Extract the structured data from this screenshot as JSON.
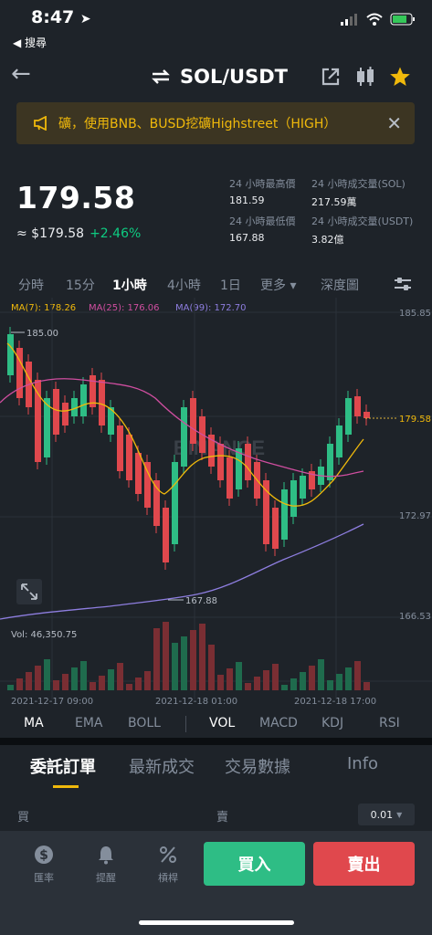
{
  "status_bar": {
    "time": "8:47",
    "back_label": "◀ 搜尋"
  },
  "header": {
    "pair": "SOL/USDT"
  },
  "banner": {
    "text": "礦，使用BNB、BUSD挖礦Highstreet（HIGH）"
  },
  "price": {
    "last": "179.58",
    "fiat": "≈ $179.58",
    "change": "+2.46%"
  },
  "stats": {
    "high_label": "24 小時最高價",
    "high_value": "181.59",
    "vol_sol_label": "24 小時成交量(SOL)",
    "vol_sol_value": "217.59萬",
    "low_label": "24 小時最低價",
    "low_value": "167.88",
    "vol_usdt_label": "24 小時成交量(USDT)",
    "vol_usdt_value": "3.82億"
  },
  "intervals": {
    "items": [
      "分時",
      "15分",
      "1小時",
      "4小時",
      "1日",
      "更多 ▾",
      "深度圖"
    ],
    "active": "1小時"
  },
  "ma_legend": {
    "ma7": "MA(7): 178.26",
    "ma25": "MA(25): 176.06",
    "ma99": "MA(99): 172.70"
  },
  "chart": {
    "price_axis": [
      "185.85",
      "179.58",
      "172.97",
      "166.53"
    ],
    "current_price_tag": "179.58",
    "high_marker": "185.00",
    "low_marker": "167.88",
    "volume_label": "Vol: 46,350.75",
    "time_axis": [
      "2021-12-17 09:00",
      "2021-12-18 01:00",
      "2021-12-18 17:00"
    ],
    "watermark": "BINANCE",
    "colors": {
      "up": "#2ebd85",
      "down": "#e0484d",
      "ma7": "#f0b90b",
      "ma25": "#d04ea0",
      "ma99": "#8e7ee0"
    }
  },
  "indicators": {
    "main": [
      "MA",
      "EMA",
      "BOLL"
    ],
    "sub": [
      "VOL",
      "MACD",
      "KDJ",
      "RSI"
    ]
  },
  "order_tabs": [
    "委託訂單",
    "最新成交",
    "交易數據",
    "Info"
  ],
  "orderbook": {
    "buy_label": "買",
    "sell_label": "賣",
    "precision": "0.01"
  },
  "bottom_nav": {
    "rates": "匯率",
    "alerts": "提醒",
    "leverage": "槓桿",
    "buy": "買入",
    "sell": "賣出"
  }
}
